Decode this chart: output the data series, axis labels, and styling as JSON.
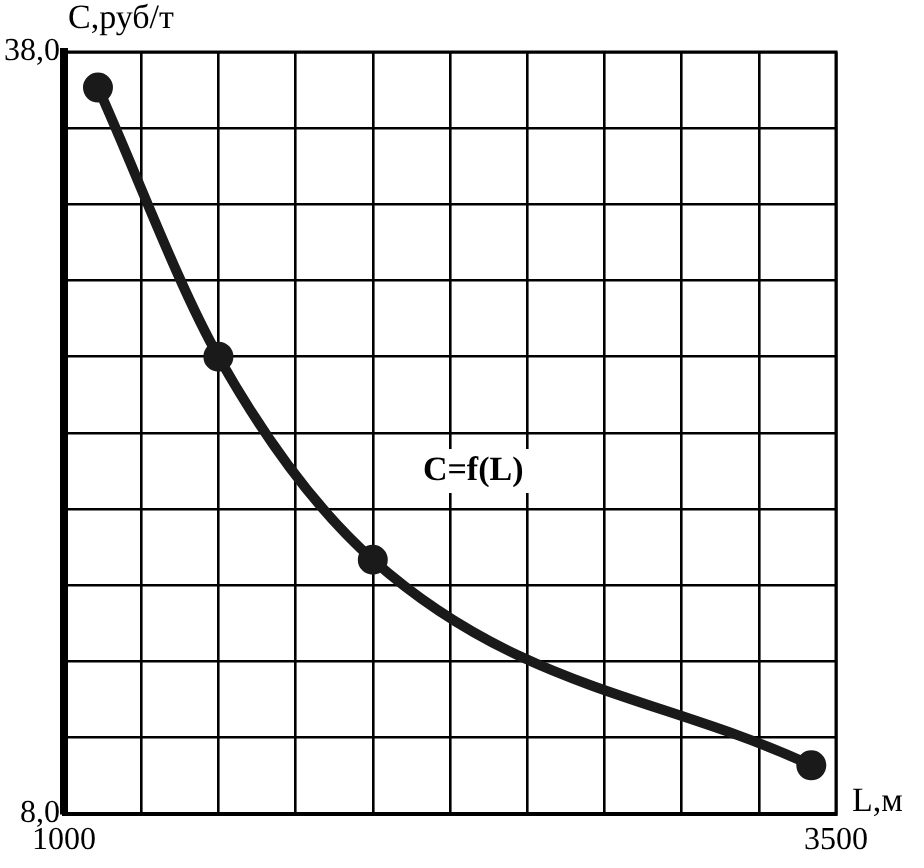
{
  "chart_data": {
    "type": "line",
    "xlabel": "L,м",
    "ylabel": "С,руб/т",
    "x": [
      1110,
      1500,
      2000,
      3420
    ],
    "series": [
      {
        "color": "#1a1a1a",
        "values": [
          36.6,
          26.0,
          18.0,
          9.9
        ]
      }
    ],
    "xlim": [
      1000,
      3500
    ],
    "xticks": [
      1000,
      {
        "value": 1250,
        "label": null
      },
      {
        "value": 1500,
        "label": null
      },
      {
        "value": 1750,
        "label": null
      },
      {
        "value": 2000,
        "label": null
      },
      {
        "value": 2250,
        "label": null
      },
      {
        "value": 2500,
        "label": null
      },
      {
        "value": 2750,
        "label": null
      },
      {
        "value": 3000,
        "label": null
      },
      {
        "value": 3250,
        "label": null
      },
      3500
    ],
    "ylim": [
      8,
      38
    ],
    "yticks": [
      {
        "value": 8,
        "label": "8,0"
      },
      {
        "value": 11,
        "label": null
      },
      {
        "value": 14,
        "label": null
      },
      {
        "value": 17,
        "label": null
      },
      {
        "value": 20,
        "label": null
      },
      {
        "value": 23,
        "label": null
      },
      {
        "value": 26,
        "label": null
      },
      {
        "value": 29,
        "label": null
      },
      {
        "value": 32,
        "label": null
      },
      {
        "value": 35,
        "label": null
      },
      {
        "value": 38,
        "label": "38,0"
      }
    ],
    "annotations": [
      "C=f(L)"
    ],
    "grid": true,
    "legend": false,
    "marker": "circle",
    "line_style": "solid"
  }
}
